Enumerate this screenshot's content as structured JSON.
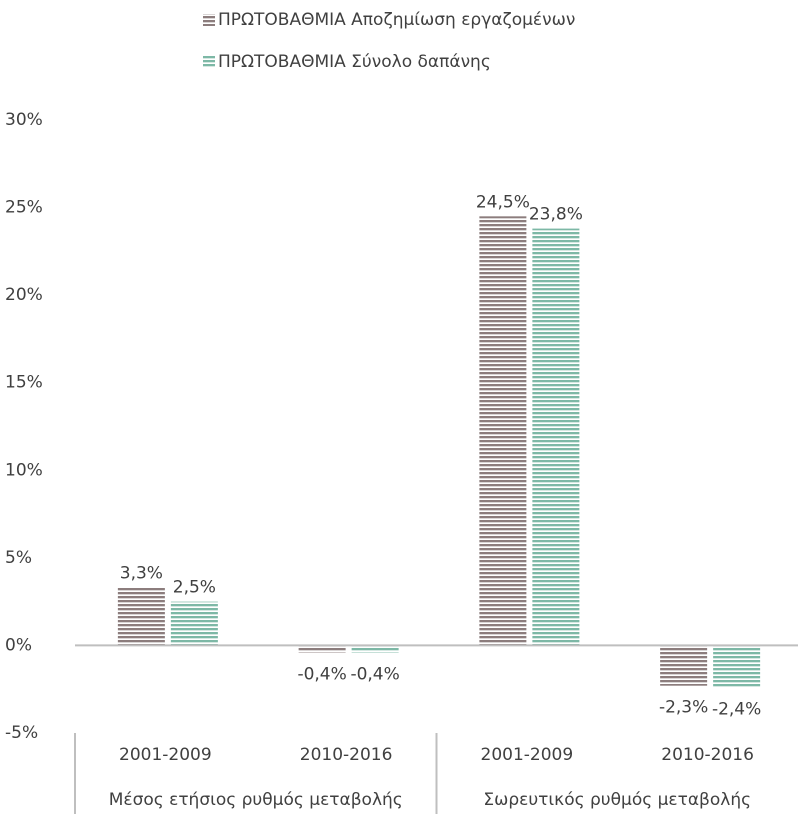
{
  "chart_data": {
    "type": "bar",
    "categories": [
      "2001-2009",
      "2010-2016",
      "2001-2009",
      "2010-2016"
    ],
    "groups": [
      "Μέσος ετήσιος ρυθμός μεταβολής",
      "Σωρευτικός ρυθμός μεταβολής"
    ],
    "series": [
      {
        "name": "ΠΡΩΤΟΒΑΘΜΙΑ Αποζημίωση εργαζομένων",
        "color": "#8c7d7d",
        "values": [
          3.3,
          -0.4,
          24.5,
          -2.3
        ],
        "value_labels": [
          "3,3%",
          "-0,4%",
          "24,5%",
          "-2,3%"
        ]
      },
      {
        "name": "ΠΡΩΤΟΒΑΘΜΙΑ Σύνολο δαπάνης",
        "color": "#7db8a6",
        "values": [
          2.5,
          -0.4,
          23.8,
          -2.4
        ],
        "value_labels": [
          "2,5%",
          "-0,4%",
          "23,8%",
          "-2,4%"
        ]
      }
    ],
    "ylim": [
      -5,
      30
    ],
    "yticks": [
      {
        "value": -5,
        "label": "-5%"
      },
      {
        "value": 0,
        "label": "0%"
      },
      {
        "value": 5,
        "label": "5%"
      },
      {
        "value": 10,
        "label": "10%"
      },
      {
        "value": 15,
        "label": "15%"
      },
      {
        "value": 20,
        "label": "20%"
      },
      {
        "value": 25,
        "label": "25%"
      },
      {
        "value": 30,
        "label": "30%"
      }
    ],
    "grid": false
  }
}
